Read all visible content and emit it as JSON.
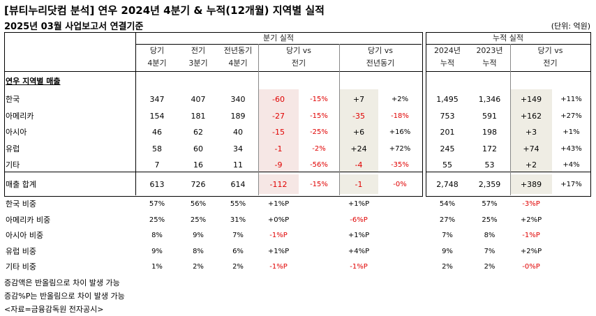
{
  "title": "[뷰티누리닷컴 분석] 연우 2024년 4분기 & 누적(12개월) 지역별 실적",
  "subtitle": "2025년 03월 사업보고서 연결기준",
  "unit": "(단위: 억원)",
  "groups": {
    "quarter": "분기 실적",
    "cumulative": "누적 실적"
  },
  "headers": {
    "q_cur": [
      "당기",
      "4분기"
    ],
    "q_prev": [
      "전기",
      "3분기"
    ],
    "q_yoy": [
      "전년동기",
      "4분기"
    ],
    "q_vs_prev": [
      "당기 vs",
      "전기"
    ],
    "q_vs_yoy": [
      "당기 vs",
      "전년동기"
    ],
    "c_cur": [
      "2024년",
      "누적"
    ],
    "c_prev": [
      "2023년",
      "누적"
    ],
    "c_vs": [
      "당기 vs",
      "전기"
    ]
  },
  "section_label": "연우 지역별 매출",
  "rows": [
    {
      "label": "한국",
      "q_cur": "347",
      "q_prev": "407",
      "q_yoy": "340",
      "d_prev": "-60",
      "d_prev_pct": "-15%",
      "d_yoy": "+7",
      "d_yoy_pct": "+2%",
      "c_cur": "1,495",
      "c_prev": "1,346",
      "c_d": "+149",
      "c_d_pct": "+11%"
    },
    {
      "label": "아메리카",
      "q_cur": "154",
      "q_prev": "181",
      "q_yoy": "189",
      "d_prev": "-27",
      "d_prev_pct": "-15%",
      "d_yoy": "-35",
      "d_yoy_pct": "-18%",
      "c_cur": "753",
      "c_prev": "591",
      "c_d": "+162",
      "c_d_pct": "+27%"
    },
    {
      "label": "아시아",
      "q_cur": "46",
      "q_prev": "62",
      "q_yoy": "40",
      "d_prev": "-15",
      "d_prev_pct": "-25%",
      "d_yoy": "+6",
      "d_yoy_pct": "+16%",
      "c_cur": "201",
      "c_prev": "198",
      "c_d": "+3",
      "c_d_pct": "+1%"
    },
    {
      "label": "유럽",
      "q_cur": "58",
      "q_prev": "60",
      "q_yoy": "34",
      "d_prev": "-1",
      "d_prev_pct": "-2%",
      "d_yoy": "+24",
      "d_yoy_pct": "+72%",
      "c_cur": "245",
      "c_prev": "172",
      "c_d": "+74",
      "c_d_pct": "+43%"
    },
    {
      "label": "기타",
      "q_cur": "7",
      "q_prev": "16",
      "q_yoy": "11",
      "d_prev": "-9",
      "d_prev_pct": "-56%",
      "d_yoy": "-4",
      "d_yoy_pct": "-35%",
      "c_cur": "55",
      "c_prev": "53",
      "c_d": "+2",
      "c_d_pct": "+4%"
    }
  ],
  "total": {
    "label": "매출 합계",
    "q_cur": "613",
    "q_prev": "726",
    "q_yoy": "614",
    "d_prev": "-112",
    "d_prev_pct": "-15%",
    "d_yoy": "-1",
    "d_yoy_pct": "-0%",
    "c_cur": "2,748",
    "c_prev": "2,359",
    "c_d": "+389",
    "c_d_pct": "+17%"
  },
  "shares": [
    {
      "label": "한국 비중",
      "q_cur": "57%",
      "q_prev": "56%",
      "q_yoy": "55%",
      "d_prev": "+1%P",
      "d_yoy": "+1%P",
      "c_cur": "54%",
      "c_prev": "57%",
      "c_d": "-3%P"
    },
    {
      "label": "아메리카 비중",
      "q_cur": "25%",
      "q_prev": "25%",
      "q_yoy": "31%",
      "d_prev": "+0%P",
      "d_yoy": "-6%P",
      "c_cur": "27%",
      "c_prev": "25%",
      "c_d": "+2%P"
    },
    {
      "label": "아시아 비중",
      "q_cur": "8%",
      "q_prev": "9%",
      "q_yoy": "7%",
      "d_prev": "-1%P",
      "d_yoy": "+1%P",
      "c_cur": "7%",
      "c_prev": "8%",
      "c_d": "-1%P"
    },
    {
      "label": "유럽 비중",
      "q_cur": "9%",
      "q_prev": "8%",
      "q_yoy": "6%",
      "d_prev": "+1%P",
      "d_yoy": "+4%P",
      "c_cur": "9%",
      "c_prev": "7%",
      "c_d": "+2%P"
    },
    {
      "label": "기타 비중",
      "q_cur": "1%",
      "q_prev": "2%",
      "q_yoy": "2%",
      "d_prev": "-1%P",
      "d_yoy": "-1%P",
      "c_cur": "2%",
      "c_prev": "2%",
      "c_d": "-0%P"
    }
  ],
  "notes": [
    "증감액은 반올림으로 차이 발생 가능",
    "증감%P는 반올림으로 차이 발생 가능",
    "<자료=금융감독원 전자공시>"
  ],
  "colors": {
    "negative": "#e00000",
    "shade_quarter": "#f6e7e5",
    "shade_cumulative": "#efede4"
  }
}
